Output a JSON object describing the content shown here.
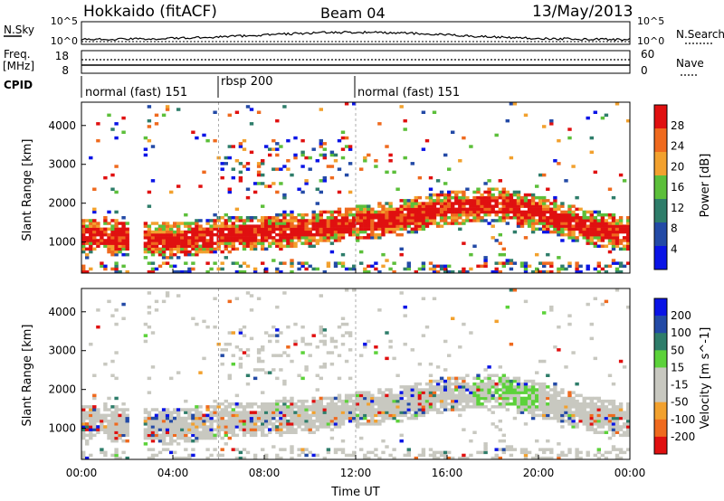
{
  "header": {
    "station": "Hokkaido (fitACF)",
    "beam": "Beam 04",
    "date": "13/May/2013"
  },
  "summary_panels": {
    "nsky_label": "N.Sky",
    "nsearch_label": "N.Search",
    "freq_label_line1": "Freq.",
    "freq_label_line2": "[MHz]",
    "nave_label": "Nave",
    "cpid_label": "CPID",
    "noise_ticks_left": [
      "10^5",
      "10^0"
    ],
    "noise_ticks_right": [
      "10^5",
      "10^0"
    ],
    "freq_ticks": [
      "8",
      "18"
    ],
    "nave_ticks": [
      "60",
      "0"
    ],
    "cpid_segments": [
      {
        "label": "normal (fast) 151",
        "start_hour": 0
      },
      {
        "label": "rbsp 200",
        "start_hour": 6
      },
      {
        "label": "normal (fast) 151",
        "start_hour": 12
      }
    ]
  },
  "chart_data": [
    {
      "type": "heatmap",
      "quantity": "Power",
      "ylabel": "Slant Range [km]",
      "colorbar_label": "Power [dB]",
      "colorbar_ticks": [
        "28",
        "24",
        "20",
        "16",
        "12",
        "8",
        "4"
      ],
      "colorbar_range": [
        0,
        32
      ],
      "colors": [
        "#0a14e6",
        "#234aa6",
        "#2e7d6a",
        "#5cbf3a",
        "#f2a12e",
        "#ef6a1e",
        "#e01010"
      ],
      "xlim": [
        0,
        24
      ],
      "ylim": [
        200,
        4600
      ],
      "yticks": [
        "1000",
        "2000",
        "3000",
        "4000"
      ],
      "main_echo_band": [
        {
          "hour": 0.0,
          "range": 1150
        },
        {
          "hour": 2.0,
          "range": 1050
        },
        {
          "hour": 4.0,
          "range": 1000
        },
        {
          "hour": 6.0,
          "range": 1150
        },
        {
          "hour": 8.0,
          "range": 1200
        },
        {
          "hour": 10.0,
          "range": 1300
        },
        {
          "hour": 12.0,
          "range": 1450
        },
        {
          "hour": 14.0,
          "range": 1600
        },
        {
          "hour": 16.0,
          "range": 1850
        },
        {
          "hour": 18.0,
          "range": 1950
        },
        {
          "hour": 20.0,
          "range": 1700
        },
        {
          "hour": 22.0,
          "range": 1350
        },
        {
          "hour": 24.0,
          "range": 1150
        }
      ]
    },
    {
      "type": "heatmap",
      "quantity": "Velocity",
      "ylabel": "Slant Range [km]",
      "xlabel": "Time UT",
      "colorbar_label": "Velocity [m s^-1]",
      "colorbar_ticks": [
        "200",
        "100",
        "50",
        "15",
        "-15",
        "-50",
        "-100",
        "-200"
      ],
      "colorbar_range": [
        -250,
        250
      ],
      "colors": [
        "#e01010",
        "#ef6a1e",
        "#f2a12e",
        "#c8c8c0",
        "#c8c8c0",
        "#5cd23a",
        "#2e7d6a",
        "#234aa6",
        "#0a14e6"
      ],
      "xlim": [
        0,
        24
      ],
      "ylim": [
        200,
        4600
      ],
      "xticks": [
        "00:00",
        "04:00",
        "08:00",
        "12:00",
        "16:00",
        "20:00",
        "00:00"
      ],
      "yticks": [
        "1000",
        "2000",
        "3000",
        "4000"
      ]
    }
  ]
}
